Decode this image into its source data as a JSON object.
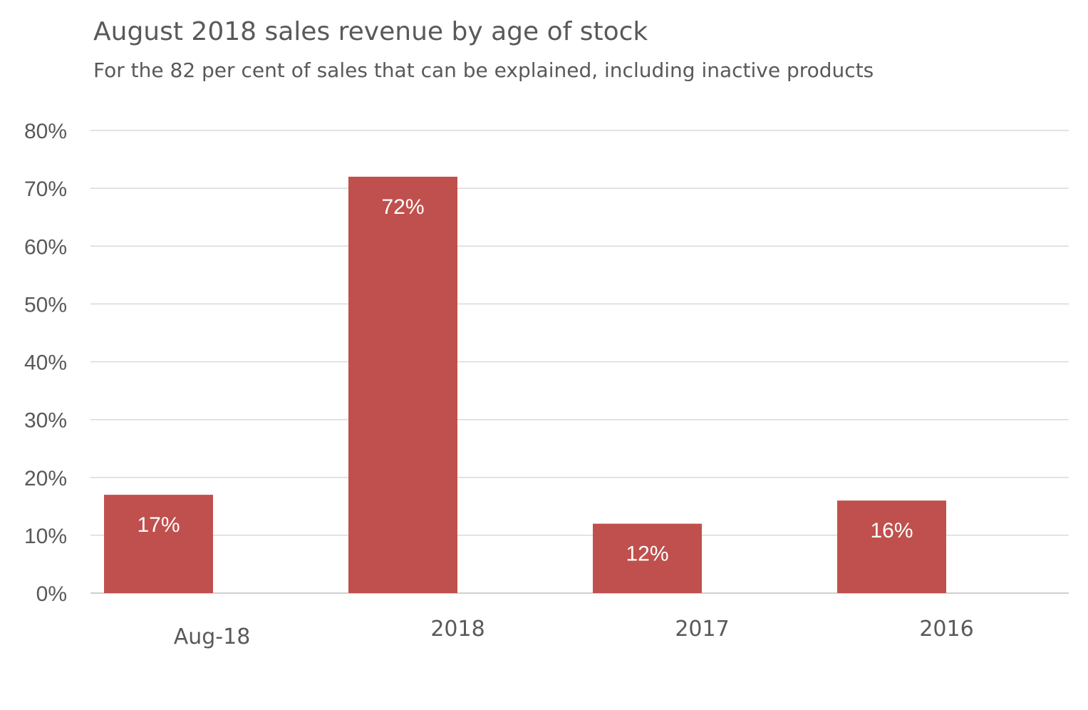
{
  "chart_data": {
    "type": "bar",
    "title": "August 2018 sales revenue by age of stock",
    "subtitle": "For the 82 per cent of sales that can be explained, including inactive products",
    "categories": [
      "Aug-18",
      "2018",
      "2017",
      "2016"
    ],
    "values": [
      17,
      72,
      12,
      16
    ],
    "data_labels": [
      "17%",
      "72%",
      "12%",
      "16%"
    ],
    "ylim": [
      0,
      80
    ],
    "yticks": [
      0,
      10,
      20,
      30,
      40,
      50,
      60,
      70,
      80
    ],
    "ytick_labels": [
      "0%",
      "10%",
      "20%",
      "30%",
      "40%",
      "50%",
      "60%",
      "70%",
      "80%"
    ],
    "xlabel": "",
    "ylabel": "",
    "grid": true,
    "legend": "none",
    "colors": {
      "bar": "#c0504d",
      "grid": "#d9d9d9",
      "axis": "#bfbfbf",
      "tick_text": "#595959",
      "data_label": "#ffffff"
    }
  }
}
